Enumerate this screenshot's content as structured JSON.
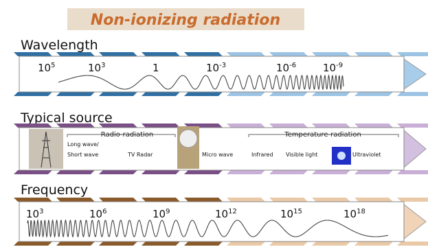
{
  "title": "Non-ionizing radiation",
  "wavelength": {
    "label": "Wavelength",
    "ticks": [
      {
        "base": "10",
        "exp": "5"
      },
      {
        "base": "10",
        "exp": "3"
      },
      "1",
      {
        "base": "10",
        "exp": "-3"
      },
      {
        "base": "10",
        "exp": "-6"
      },
      {
        "base": "10",
        "exp": "-9"
      }
    ]
  },
  "source": {
    "label": "Typical source",
    "groups": [
      "Radio-radiation",
      "Temperature-radiation"
    ],
    "items": [
      "Long wave/",
      "Short wave",
      "TV Radar",
      "Micro wave",
      "Infrared",
      "Visible light",
      "Ultraviolet"
    ]
  },
  "frequency": {
    "label": "Frequency",
    "ticks": [
      {
        "base": "10",
        "exp": "3"
      },
      {
        "base": "10",
        "exp": "6"
      },
      {
        "base": "10",
        "exp": "9"
      },
      {
        "base": "10",
        "exp": "12"
      },
      {
        "base": "10",
        "exp": "15"
      },
      {
        "base": "10",
        "exp": "18"
      }
    ]
  }
}
